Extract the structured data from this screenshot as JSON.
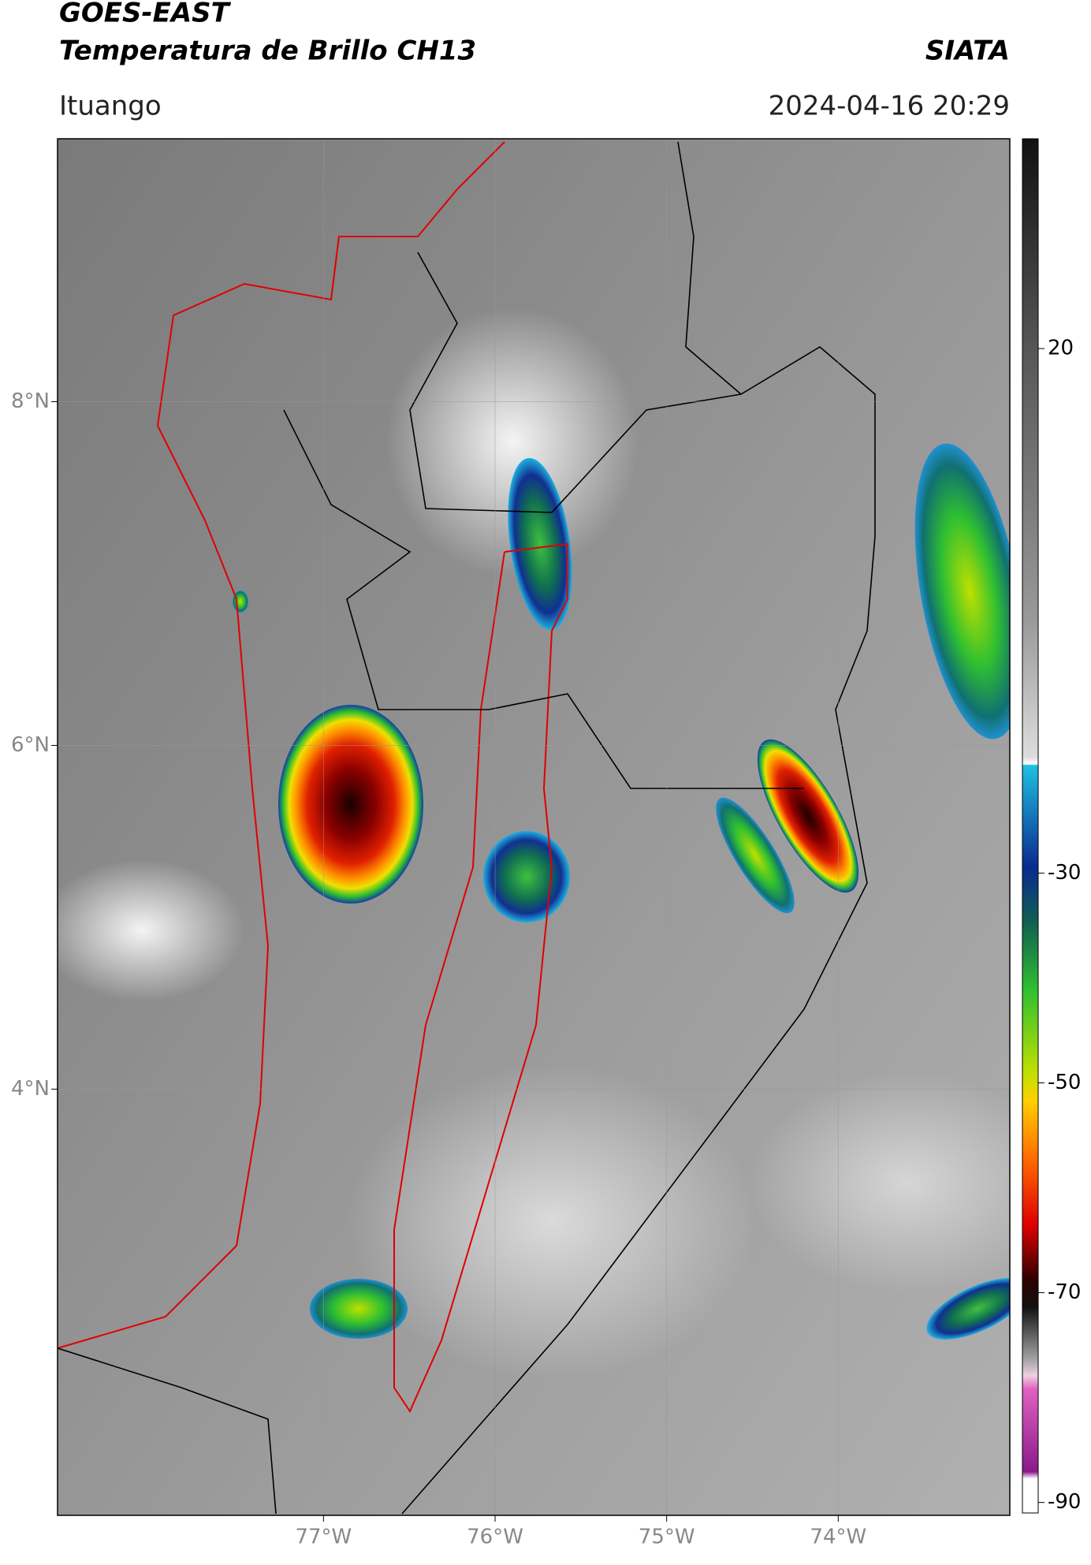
{
  "header": {
    "title": "GOES-EAST",
    "subtitle": "Temperatura de Brillo CH13",
    "source": "SIATA",
    "location": "Ituango",
    "datetime": "2024-04-16 20:29"
  },
  "chart_data": {
    "type": "map",
    "ylim": [
      1.52,
      9.53
    ],
    "yticks": [
      {
        "value": 4,
        "label": "4°N"
      },
      {
        "value": 6,
        "label": "6°N"
      },
      {
        "value": 8,
        "label": "8°N"
      }
    ],
    "xlim": [
      -78.55,
      -73.0
    ],
    "xticks": [
      {
        "value": -77,
        "label": "77°W"
      },
      {
        "value": -76,
        "label": "76°W"
      },
      {
        "value": -75,
        "label": "75°W"
      },
      {
        "value": -74,
        "label": "74°W"
      }
    ],
    "grid": true,
    "colorbar": {
      "lim": [
        -91,
        40
      ],
      "ticks": [
        -90,
        -70,
        -50,
        -30,
        20
      ]
    }
  }
}
